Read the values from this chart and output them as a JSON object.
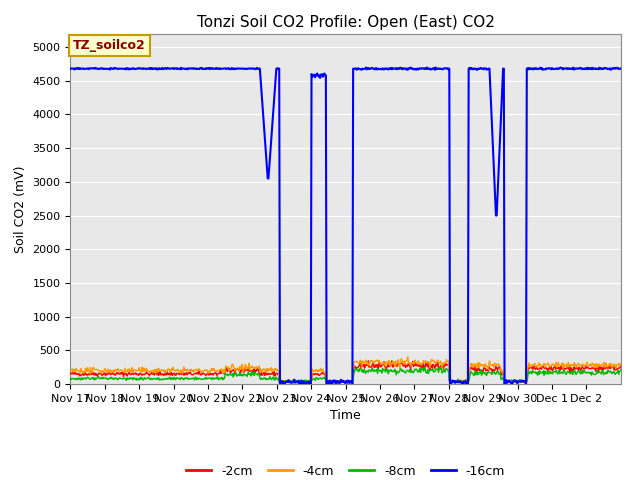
{
  "title": "Tonzi Soil CO2 Profile: Open (East) CO2",
  "ylabel": "Soil CO2 (mV)",
  "xlabel": "Time",
  "ylim": [
    0,
    5200
  ],
  "yticks": [
    0,
    500,
    1000,
    1500,
    2000,
    2500,
    3000,
    3500,
    4000,
    4500,
    5000
  ],
  "xtick_labels": [
    "Nov 17",
    "Nov 18",
    "Nov 19",
    "Nov 20",
    "Nov 21",
    "Nov 22",
    "Nov 23",
    "Nov 24",
    "Nov 25",
    "Nov 26",
    "Nov 27",
    "Nov 28",
    "Nov 29",
    "Nov 30",
    "Dec 1",
    "Dec 2"
  ],
  "bg_color": "#e8e8e8",
  "grid_color": "#ffffff",
  "legend_box_color": "#ffffcc",
  "legend_box_edge": "#cc9900",
  "legend_label": "TZ_soilco2",
  "series_labels": [
    "-2cm",
    "-4cm",
    "-8cm",
    "-16cm"
  ],
  "series_colors": [
    "#ff0000",
    "#ff9900",
    "#00bb00",
    "#0000ff"
  ],
  "title_fontsize": 11,
  "axis_label_fontsize": 9,
  "tick_fontsize": 8
}
